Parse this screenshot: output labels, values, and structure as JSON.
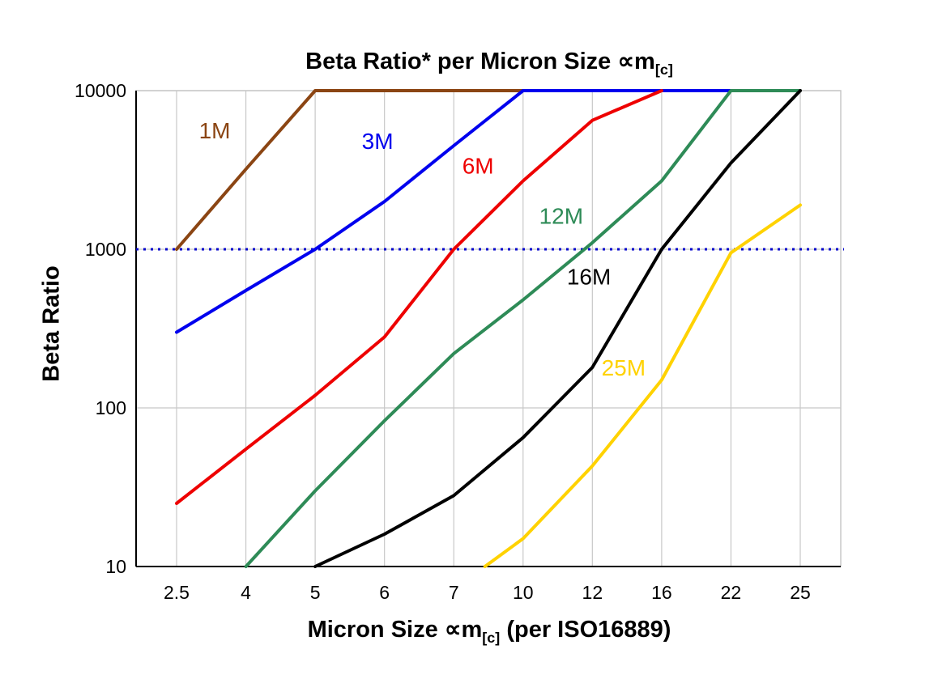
{
  "title": {
    "prefix": "Beta Ratio* per Micron Size ",
    "symbol": "∝m",
    "subscript": "[c]"
  },
  "y_axis": {
    "title": "Beta Ratio",
    "ticks": [
      "10000",
      "1000",
      "100",
      "10"
    ],
    "tick_values": [
      10000,
      1000,
      100,
      10
    ]
  },
  "x_axis": {
    "title_prefix": "Micron Size ",
    "title_symbol": "∝m",
    "title_subscript": "[c]",
    "title_suffix": " (per ISO16889)"
  },
  "chart_data": {
    "type": "line",
    "x_scale": "categorical",
    "y_scale": "log",
    "ylim": [
      10,
      10000
    ],
    "grid": true,
    "grid_color": "#c8c8c8",
    "axis_color": "#000000",
    "categories": [
      "2.5",
      "4",
      "5",
      "6",
      "7",
      "10",
      "12",
      "16",
      "22",
      "25"
    ],
    "reference_line": {
      "value": 1000,
      "color": "#0000cc",
      "style": "dotted"
    },
    "series": [
      {
        "name": "1M",
        "color": "#8B4513",
        "values": [
          1000,
          3200,
          10000,
          10000,
          10000,
          10000,
          null,
          null,
          null,
          null
        ],
        "label_at": {
          "i": 0.55,
          "v": 5000
        }
      },
      {
        "name": "3M",
        "color": "#0000EE",
        "values": [
          300,
          550,
          1000,
          2000,
          4500,
          10000,
          10000,
          10000,
          10000,
          null
        ],
        "label_at": {
          "i": 2.9,
          "v": 4300
        }
      },
      {
        "name": "6M",
        "color": "#EE0000",
        "values": [
          25,
          55,
          120,
          280,
          1000,
          2700,
          6500,
          10000,
          null,
          null
        ],
        "label_at": {
          "i": 4.35,
          "v": 3000
        }
      },
      {
        "name": "12M",
        "color": "#2E8B57",
        "values": [
          null,
          10,
          30,
          83,
          220,
          480,
          1100,
          2700,
          10000,
          10000
        ],
        "label_at": {
          "i": 5.55,
          "v": 1450
        }
      },
      {
        "name": "16M",
        "color": "#000000",
        "values": [
          null,
          null,
          10,
          16,
          28,
          65,
          180,
          1000,
          3500,
          10000
        ],
        "label_at": {
          "i": 5.95,
          "v": 600
        }
      },
      {
        "name": "25M",
        "color": "#FFD200",
        "values": [
          null,
          null,
          null,
          null,
          null,
          15,
          43,
          150,
          950,
          1900
        ],
        "start": {
          "i": 4.45,
          "v": 10
        },
        "label_at": {
          "i": 6.45,
          "v": 160
        }
      }
    ]
  }
}
